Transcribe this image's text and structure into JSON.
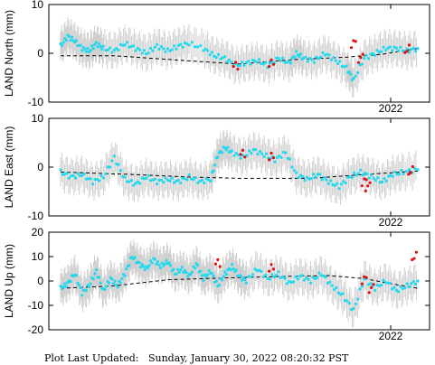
{
  "footer": {
    "text": "Plot Last Updated:   Sunday, January 30, 2022 08:20:32 PST"
  },
  "colors": {
    "main_points": "#22d8ee",
    "highlight_points": "#e01010",
    "error_bars": "#cfcfcf",
    "trend": "#000000",
    "frame": "#000000"
  },
  "chart_data": [
    {
      "type": "scatter",
      "ylabel": "LAND North (mm)",
      "ylim": [
        -10,
        10
      ],
      "yticks": [
        -10,
        0,
        10
      ],
      "xtick_labels": [
        "2022"
      ],
      "grid": false,
      "legend": "none",
      "error_bar_halfwidth": 3,
      "series": [
        {
          "values": [
            [
              0.0,
              1.5
            ],
            [
              0.02,
              3.5
            ],
            [
              0.04,
              2.5
            ],
            [
              0.06,
              1.0
            ],
            [
              0.08,
              0.5
            ],
            [
              0.1,
              2.0
            ],
            [
              0.12,
              1.0
            ],
            [
              0.15,
              0.5
            ],
            [
              0.18,
              2.0
            ],
            [
              0.21,
              1.0
            ],
            [
              0.24,
              0.0
            ],
            [
              0.27,
              1.5
            ],
            [
              0.3,
              0.5
            ],
            [
              0.33,
              1.5
            ],
            [
              0.36,
              2.0
            ],
            [
              0.4,
              1.0
            ],
            [
              0.43,
              -0.5
            ],
            [
              0.46,
              -1.0
            ],
            [
              0.49,
              -2.5
            ],
            [
              0.52,
              -2.0
            ],
            [
              0.55,
              -1.5
            ],
            [
              0.58,
              -2.5
            ],
            [
              0.61,
              -1.0
            ],
            [
              0.64,
              -2.0
            ],
            [
              0.66,
              0.0
            ],
            [
              0.68,
              -1.0
            ],
            [
              0.71,
              -1.5
            ],
            [
              0.74,
              0.0
            ],
            [
              0.77,
              -1.5
            ],
            [
              0.8,
              -3.0
            ],
            [
              0.82,
              -5.5
            ],
            [
              0.85,
              -1.0
            ],
            [
              0.88,
              0.0
            ],
            [
              0.91,
              1.0
            ],
            [
              0.94,
              1.0
            ],
            [
              0.97,
              0.5
            ],
            [
              1.0,
              1.0
            ]
          ]
        },
        {
          "values": [
            [
              0.49,
              -2.7
            ],
            [
              0.59,
              -2.2
            ],
            [
              0.82,
              2.0
            ],
            [
              0.84,
              -1.0
            ],
            [
              0.97,
              0.8
            ]
          ]
        }
      ],
      "trend": [
        [
          0.0,
          -0.5
        ],
        [
          0.15,
          -0.5
        ],
        [
          0.35,
          -1.5
        ],
        [
          0.5,
          -2.2
        ],
        [
          0.65,
          -1.3
        ],
        [
          0.8,
          -0.8
        ],
        [
          0.9,
          -0.2
        ],
        [
          1.0,
          1.0
        ]
      ]
    },
    {
      "type": "scatter",
      "ylabel": "LAND East (mm)",
      "ylim": [
        -10,
        10
      ],
      "yticks": [
        -10,
        0,
        10
      ],
      "xtick_labels": [
        "2022"
      ],
      "grid": false,
      "legend": "none",
      "error_bar_halfwidth": 3,
      "series": [
        {
          "values": [
            [
              0.0,
              -1.0
            ],
            [
              0.03,
              -2.0
            ],
            [
              0.06,
              -1.5
            ],
            [
              0.09,
              -3.0
            ],
            [
              0.12,
              -2.0
            ],
            [
              0.15,
              2.0
            ],
            [
              0.18,
              -2.5
            ],
            [
              0.21,
              -3.5
            ],
            [
              0.24,
              -2.0
            ],
            [
              0.27,
              -3.0
            ],
            [
              0.3,
              -2.5
            ],
            [
              0.33,
              -3.0
            ],
            [
              0.36,
              -2.0
            ],
            [
              0.39,
              -3.0
            ],
            [
              0.42,
              -2.5
            ],
            [
              0.44,
              2.5
            ],
            [
              0.46,
              4.0
            ],
            [
              0.48,
              3.0
            ],
            [
              0.51,
              2.0
            ],
            [
              0.54,
              3.5
            ],
            [
              0.57,
              2.5
            ],
            [
              0.6,
              1.5
            ],
            [
              0.63,
              3.0
            ],
            [
              0.66,
              -1.5
            ],
            [
              0.69,
              -2.5
            ],
            [
              0.72,
              -1.5
            ],
            [
              0.75,
              -3.0
            ],
            [
              0.78,
              -4.0
            ],
            [
              0.81,
              -2.0
            ],
            [
              0.84,
              -1.0
            ],
            [
              0.87,
              -2.0
            ],
            [
              0.9,
              -3.0
            ],
            [
              0.93,
              -1.5
            ],
            [
              0.96,
              -1.0
            ],
            [
              1.0,
              -0.5
            ]
          ]
        },
        {
          "values": [
            [
              0.51,
              2.6
            ],
            [
              0.59,
              2.0
            ],
            [
              0.85,
              -3.0
            ],
            [
              0.86,
              -4.0
            ],
            [
              0.98,
              -0.8
            ]
          ]
        }
      ],
      "trend": [
        [
          0.0,
          -1.0
        ],
        [
          0.2,
          -1.5
        ],
        [
          0.35,
          -2.0
        ],
        [
          0.5,
          -2.3
        ],
        [
          0.7,
          -2.3
        ],
        [
          0.85,
          -1.5
        ],
        [
          1.0,
          -0.8
        ]
      ]
    },
    {
      "type": "scatter",
      "ylabel": "LAND Up (mm)",
      "ylim": [
        -20,
        20
      ],
      "yticks": [
        -20,
        -10,
        0,
        10,
        20
      ],
      "xtick_labels": [
        "2022"
      ],
      "grid": false,
      "legend": "none",
      "error_bar_halfwidth": 6,
      "series": [
        {
          "values": [
            [
              0.0,
              -3.0
            ],
            [
              0.02,
              -1.0
            ],
            [
              0.04,
              3.0
            ],
            [
              0.06,
              -5.0
            ],
            [
              0.08,
              -2.0
            ],
            [
              0.1,
              4.0
            ],
            [
              0.12,
              -4.0
            ],
            [
              0.14,
              1.0
            ],
            [
              0.16,
              -2.0
            ],
            [
              0.18,
              3.0
            ],
            [
              0.2,
              10.0
            ],
            [
              0.22,
              7.0
            ],
            [
              0.24,
              5.0
            ],
            [
              0.26,
              9.0
            ],
            [
              0.28,
              6.0
            ],
            [
              0.3,
              8.0
            ],
            [
              0.32,
              3.0
            ],
            [
              0.34,
              5.0
            ],
            [
              0.36,
              2.0
            ],
            [
              0.38,
              7.0
            ],
            [
              0.4,
              1.0
            ],
            [
              0.42,
              4.0
            ],
            [
              0.44,
              -2.0
            ],
            [
              0.46,
              3.0
            ],
            [
              0.48,
              6.0
            ],
            [
              0.5,
              2.0
            ],
            [
              0.52,
              0.0
            ],
            [
              0.55,
              5.0
            ],
            [
              0.58,
              1.0
            ],
            [
              0.61,
              3.0
            ],
            [
              0.64,
              -1.0
            ],
            [
              0.67,
              2.0
            ],
            [
              0.7,
              0.0
            ],
            [
              0.73,
              3.0
            ],
            [
              0.76,
              -2.0
            ],
            [
              0.79,
              -6.0
            ],
            [
              0.82,
              -12.0
            ],
            [
              0.85,
              1.0
            ],
            [
              0.88,
              -3.0
            ],
            [
              0.91,
              0.0
            ],
            [
              0.94,
              -4.0
            ],
            [
              0.97,
              -2.0
            ],
            [
              1.0,
              0.0
            ]
          ]
        },
        {
          "values": [
            [
              0.44,
              7.0
            ],
            [
              0.59,
              5.0
            ],
            [
              0.85,
              0.5
            ],
            [
              0.87,
              -3.0
            ],
            [
              0.99,
              10.0
            ]
          ]
        }
      ],
      "trend": [
        [
          0.0,
          -3.0
        ],
        [
          0.15,
          -2.0
        ],
        [
          0.3,
          0.5
        ],
        [
          0.45,
          1.2
        ],
        [
          0.6,
          1.8
        ],
        [
          0.75,
          2.2
        ],
        [
          0.85,
          1.0
        ],
        [
          0.92,
          -1.0
        ],
        [
          1.0,
          -3.0
        ]
      ]
    }
  ]
}
